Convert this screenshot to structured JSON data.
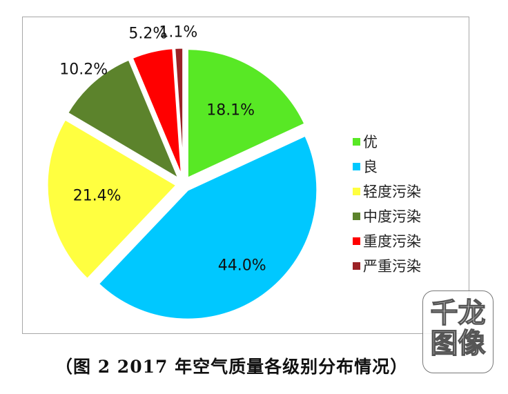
{
  "chart_data": {
    "type": "pie",
    "title": "（图 2 2017 年空气质量各级别分布情况）",
    "categories": [
      "优",
      "良",
      "轻度污染",
      "中度污染",
      "重度污染",
      "严重污染"
    ],
    "values": [
      18.1,
      44.0,
      21.4,
      10.2,
      5.2,
      1.1
    ],
    "labels": [
      "18.1%",
      "44.0%",
      "21.4%",
      "10.2%",
      "5.2%",
      "1.1%"
    ],
    "colors": [
      "#58e825",
      "#00c8ff",
      "#ffff40",
      "#5c832c",
      "#ff0000",
      "#9b2226"
    ],
    "start_angle_deg": 0,
    "direction": "clockwise",
    "exploded": true,
    "legend_position": "right"
  },
  "legend": {
    "items": [
      {
        "label": "优",
        "color": "#58e825"
      },
      {
        "label": "良",
        "color": "#00c8ff"
      },
      {
        "label": "轻度污染",
        "color": "#ffff40"
      },
      {
        "label": "中度污染",
        "color": "#5c832c"
      },
      {
        "label": "重度污染",
        "color": "#ff0000"
      },
      {
        "label": "严重污染",
        "color": "#9b2226"
      }
    ]
  },
  "caption": "（图 2 2017 年空气质量各级别分布情况）",
  "watermark": {
    "line1": "千龙",
    "line2": "图像"
  }
}
